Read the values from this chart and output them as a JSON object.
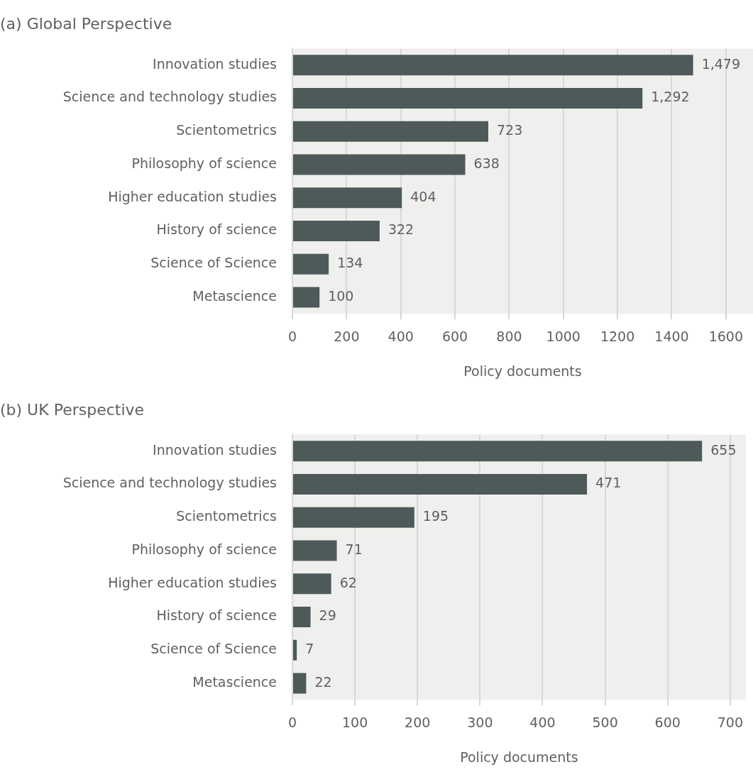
{
  "chart_data": [
    {
      "type": "bar",
      "orientation": "horizontal",
      "title": "(a) Global Perspective",
      "xlabel": "Policy documents",
      "categories": [
        "Innovation studies",
        "Science and technology studies",
        "Scientometrics",
        "Philosophy of science",
        "Higher education studies",
        "History of science",
        "Science of Science",
        "Metascience"
      ],
      "values": [
        1479,
        1292,
        723,
        638,
        404,
        322,
        134,
        100
      ],
      "color": "#4d5a59",
      "value_labels": [
        "1,479",
        "1,292",
        "723",
        "638",
        "404",
        "322",
        "134",
        "100"
      ],
      "xlim": [
        0,
        1700
      ],
      "xticks": [
        0,
        200,
        400,
        600,
        800,
        1000,
        1200,
        1400,
        1600
      ],
      "grid": "x",
      "legend": false
    },
    {
      "type": "bar",
      "orientation": "horizontal",
      "title": "(b) UK Perspective",
      "xlabel": "Policy documents",
      "categories": [
        "Innovation studies",
        "Science and technology studies",
        "Scientometrics",
        "Philosophy of science",
        "Higher education studies",
        "History of science",
        "Science of Science",
        "Metascience"
      ],
      "values": [
        655,
        471,
        195,
        71,
        62,
        29,
        7,
        22
      ],
      "color": "#4d5a59",
      "data_labels": true,
      "xlim": [
        0,
        725
      ],
      "xticks": [
        0,
        100,
        200,
        300,
        400,
        500,
        600,
        700
      ],
      "grid": "x",
      "legend": false
    }
  ]
}
